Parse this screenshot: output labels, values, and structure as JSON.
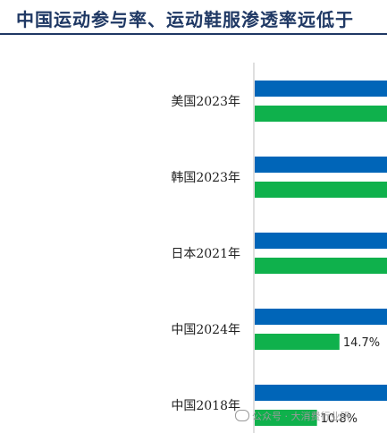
{
  "title": "中国运动参与率、运动鞋服渗透率远低于",
  "colors": {
    "participation": "#0065b8",
    "penetration": "#0fb14c",
    "axis": "#bfbfbf",
    "title": "#1f3864"
  },
  "watermark": {
    "text": "公众号 · 大消费行业研",
    "icon": "wechat-icon"
  },
  "chart_data": {
    "type": "bar",
    "orientation": "horizontal",
    "categories": [
      "美国2023年",
      "韩国2023年",
      "日本2021年",
      "中国2024年",
      "中国2018年"
    ],
    "series": [
      {
        "values": [
          null,
          null,
          null,
          null,
          null
        ]
      },
      {
        "values": [
          null,
          null,
          null,
          14.7,
          10.8
        ],
        "labels": [
          "",
          "",
          "",
          "14.7%",
          "10.8%"
        ]
      }
    ],
    "xlabel": "",
    "ylabel": ""
  }
}
